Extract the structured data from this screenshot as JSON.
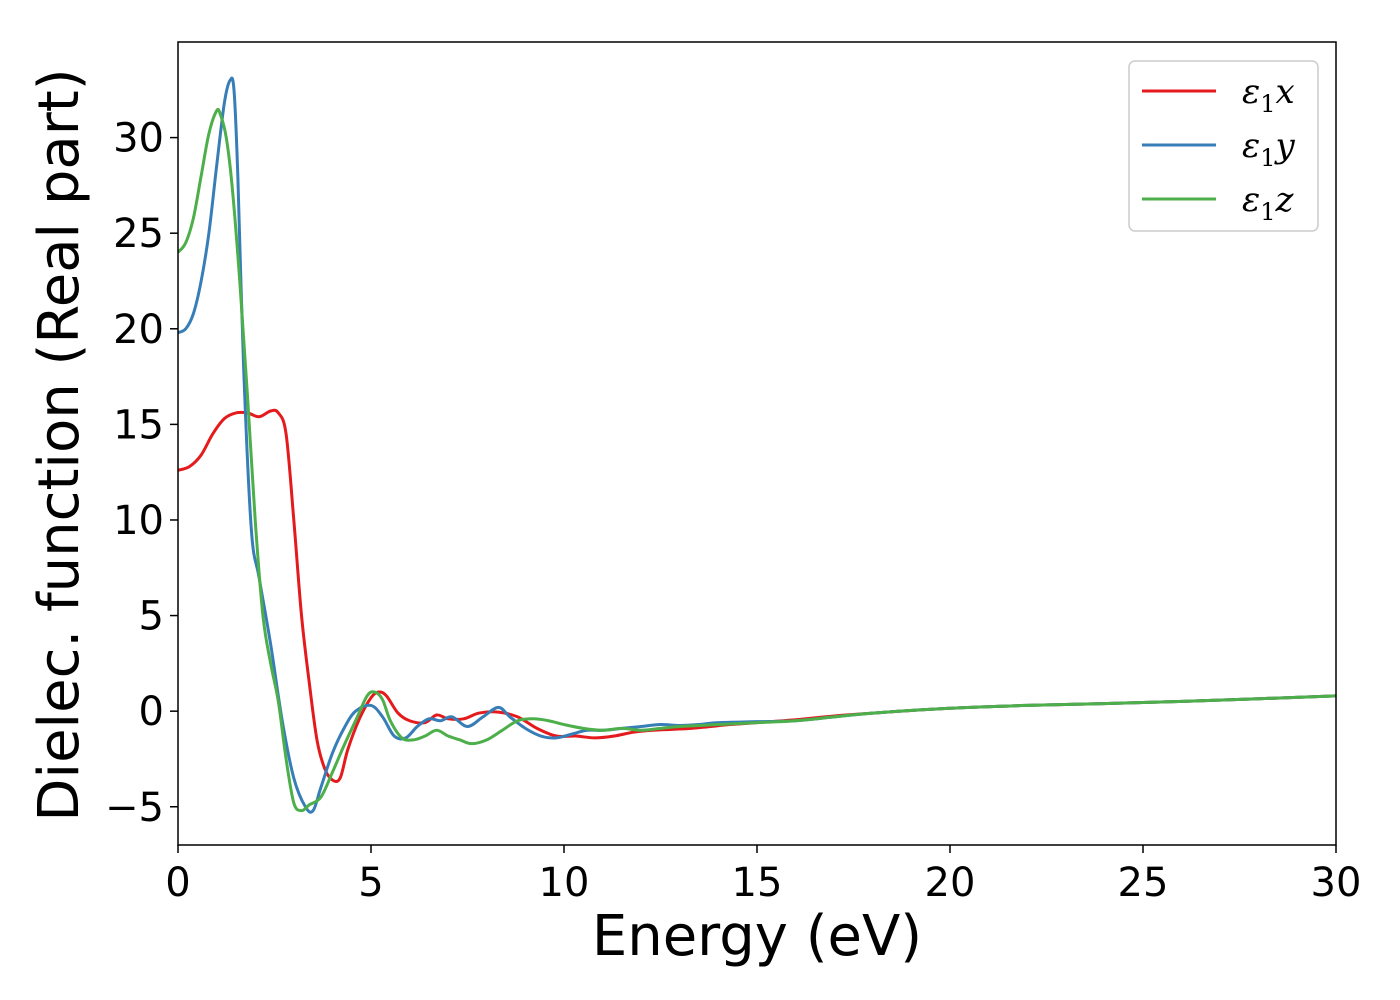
{
  "chart_data": {
    "type": "line",
    "xlabel": "Energy (eV)",
    "ylabel": "Dielec. function (Real part)",
    "xlim": [
      0,
      30
    ],
    "ylim": [
      -7,
      35
    ],
    "xticks": [
      0,
      5,
      10,
      15,
      20,
      25,
      30
    ],
    "yticks": [
      -5,
      0,
      5,
      10,
      15,
      20,
      25,
      30
    ],
    "grid": false,
    "legend_position": "top-right",
    "series": [
      {
        "name": "ε₁x",
        "legend_main": "ε",
        "legend_sub": "1",
        "legend_suffix": "x",
        "color": "#e41a1c",
        "x": [
          0,
          0.3,
          0.6,
          0.9,
          1.2,
          1.5,
          1.8,
          2.1,
          2.4,
          2.6,
          2.8,
          3.0,
          3.2,
          3.4,
          3.6,
          3.8,
          4.0,
          4.2,
          4.4,
          4.7,
          5.0,
          5.2,
          5.4,
          5.7,
          6.0,
          6.4,
          6.7,
          7.0,
          7.4,
          7.8,
          8.3,
          8.8,
          9.3,
          9.8,
          10.3,
          10.8,
          11.3,
          11.8,
          12.3,
          12.8,
          13.3,
          13.8,
          14.3,
          15.0,
          16.0,
          17.0,
          18.0,
          20.0,
          22.0,
          25.0,
          28.0,
          30.0
        ],
        "y": [
          12.6,
          12.8,
          13.4,
          14.5,
          15.3,
          15.6,
          15.6,
          15.4,
          15.7,
          15.6,
          14.5,
          10.0,
          5.0,
          1.5,
          -1.5,
          -3.0,
          -3.6,
          -3.5,
          -2.0,
          -0.4,
          0.7,
          1.0,
          0.8,
          -0.1,
          -0.5,
          -0.6,
          -0.2,
          -0.4,
          -0.4,
          -0.1,
          -0.05,
          -0.3,
          -0.9,
          -1.3,
          -1.3,
          -1.4,
          -1.3,
          -1.1,
          -1.0,
          -0.95,
          -0.9,
          -0.8,
          -0.7,
          -0.6,
          -0.45,
          -0.25,
          -0.1,
          0.15,
          0.3,
          0.45,
          0.65,
          0.8
        ]
      },
      {
        "name": "ε₁y",
        "legend_main": "ε",
        "legend_sub": "1",
        "legend_suffix": "y",
        "color": "#377eb8",
        "x": [
          0,
          0.2,
          0.4,
          0.6,
          0.8,
          1.0,
          1.2,
          1.35,
          1.45,
          1.55,
          1.7,
          1.9,
          2.1,
          2.4,
          2.7,
          3.0,
          3.3,
          3.5,
          3.7,
          4.0,
          4.3,
          4.6,
          5.0,
          5.3,
          5.6,
          5.9,
          6.2,
          6.5,
          6.8,
          7.1,
          7.5,
          7.9,
          8.3,
          8.6,
          9.0,
          9.4,
          9.8,
          10.2,
          10.6,
          11.0,
          11.5,
          12.0,
          12.5,
          13.0,
          13.5,
          14.0,
          15.0,
          16.0,
          17.0,
          18.0,
          20.0,
          22.0,
          25.0,
          28.0,
          30.0
        ],
        "y": [
          19.8,
          20.0,
          20.8,
          22.5,
          25.0,
          28.5,
          31.8,
          33.0,
          32.5,
          28.0,
          18.0,
          9.5,
          7.0,
          3.5,
          -0.5,
          -3.5,
          -5.0,
          -5.2,
          -4.0,
          -2.2,
          -0.9,
          0.0,
          0.3,
          -0.3,
          -1.3,
          -1.4,
          -0.8,
          -0.4,
          -0.5,
          -0.3,
          -0.8,
          -0.3,
          0.2,
          -0.3,
          -0.9,
          -1.3,
          -1.4,
          -1.2,
          -1.0,
          -1.0,
          -0.9,
          -0.8,
          -0.7,
          -0.75,
          -0.7,
          -0.6,
          -0.55,
          -0.5,
          -0.3,
          -0.1,
          0.15,
          0.3,
          0.45,
          0.65,
          0.8
        ]
      },
      {
        "name": "ε₁z",
        "legend_main": "ε",
        "legend_sub": "1",
        "legend_suffix": "z",
        "color": "#4daf4a",
        "x": [
          0,
          0.2,
          0.4,
          0.6,
          0.8,
          1.0,
          1.1,
          1.25,
          1.4,
          1.6,
          1.8,
          2.0,
          2.2,
          2.4,
          2.6,
          2.8,
          3.0,
          3.2,
          3.4,
          3.7,
          4.0,
          4.3,
          4.6,
          4.9,
          5.1,
          5.3,
          5.5,
          5.8,
          6.1,
          6.4,
          6.7,
          7.0,
          7.3,
          7.6,
          8.0,
          8.4,
          8.8,
          9.2,
          9.6,
          10.0,
          10.5,
          11.0,
          11.5,
          12.0,
          12.5,
          13.0,
          14.0,
          15.0,
          16.0,
          17.0,
          18.0,
          20.0,
          22.0,
          25.0,
          28.0,
          30.0
        ],
        "y": [
          24.0,
          24.5,
          25.8,
          28.0,
          30.2,
          31.4,
          31.2,
          30.0,
          27.5,
          22.5,
          16.5,
          10.0,
          5.0,
          2.5,
          0.5,
          -2.5,
          -4.8,
          -5.2,
          -4.9,
          -4.5,
          -3.2,
          -1.8,
          -0.5,
          0.8,
          1.0,
          0.6,
          -0.5,
          -1.4,
          -1.5,
          -1.3,
          -1.0,
          -1.3,
          -1.5,
          -1.7,
          -1.5,
          -1.0,
          -0.5,
          -0.4,
          -0.5,
          -0.7,
          -0.9,
          -1.0,
          -0.9,
          -1.0,
          -0.9,
          -0.8,
          -0.7,
          -0.6,
          -0.5,
          -0.3,
          -0.1,
          0.15,
          0.3,
          0.45,
          0.65,
          0.8
        ]
      }
    ]
  }
}
